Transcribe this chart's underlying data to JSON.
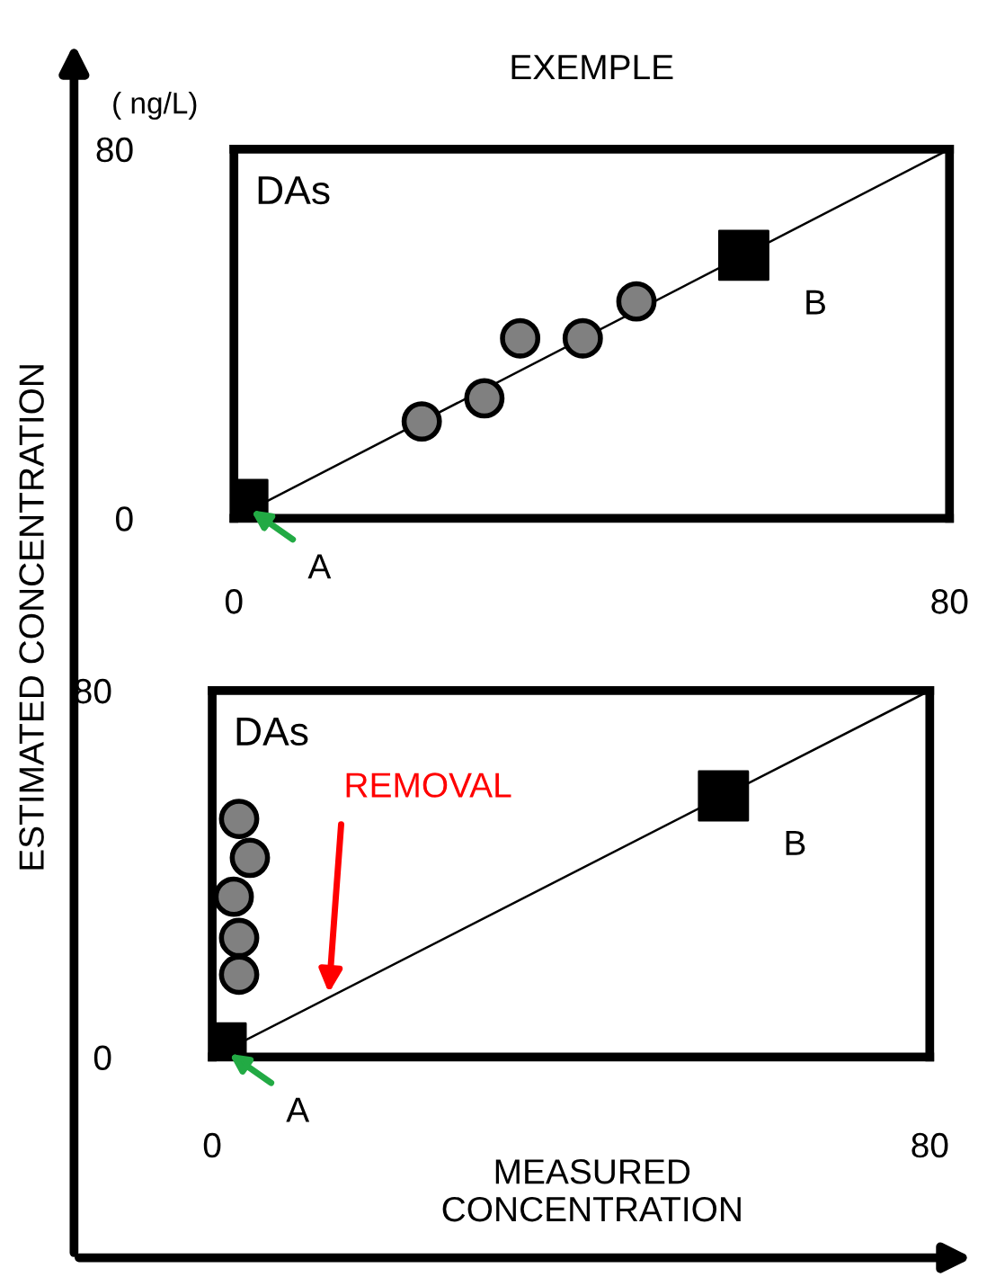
{
  "chart_data": [
    {
      "type": "scatter",
      "title": "EXEMPLE",
      "ylabel": "( ng/L)",
      "annotations": [
        "DAs"
      ],
      "xlim": [
        0,
        80
      ],
      "ylim": [
        0,
        80
      ],
      "xticks": [
        0,
        80
      ],
      "yticks": [
        0,
        80
      ],
      "legend": false,
      "series": [
        {
          "type": "line",
          "color": "#000000",
          "x": [
            0,
            80
          ],
          "values": [
            0,
            80
          ],
          "marker": "none"
        },
        {
          "color": "#808080",
          "x": [
            21,
            28,
            32,
            39,
            45
          ],
          "values": [
            21,
            26,
            39,
            39,
            47
          ],
          "marker": "circle"
        },
        {
          "color": "#000000",
          "x": [
            1,
            57
          ],
          "values": [
            3,
            57
          ],
          "marker": "square",
          "value_labels": [
            "A",
            "B"
          ]
        }
      ]
    },
    {
      "type": "scatter",
      "xlabel": "MEASURED\nCONCENTRATION",
      "ylabel": "ESTIMATED CONCENTRATION",
      "annotations": [
        "DAs",
        {
          "text": "REMOVAL",
          "x": 13,
          "y": 14
        }
      ],
      "xlim": [
        0,
        80
      ],
      "ylim": [
        0,
        80
      ],
      "xticks": [
        0,
        80
      ],
      "yticks": [
        0,
        80
      ],
      "legend": false,
      "series": [
        {
          "type": "line",
          "color": "#000000",
          "x": [
            0,
            80
          ],
          "values": [
            0,
            80
          ],
          "marker": "none"
        },
        {
          "color": "#808080",
          "x": [
            3,
            4.2,
            2.4,
            3,
            3
          ],
          "values": [
            52,
            43.5,
            35,
            26,
            18
          ],
          "marker": "circle"
        },
        {
          "color": "#000000",
          "x": [
            1,
            57
          ],
          "values": [
            2,
            57
          ],
          "marker": "square",
          "value_labels": [
            "A",
            "B"
          ]
        }
      ]
    }
  ]
}
